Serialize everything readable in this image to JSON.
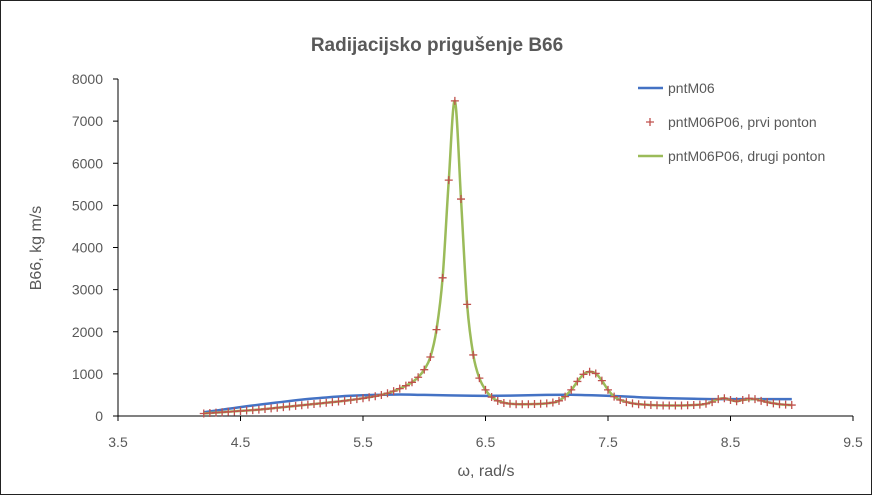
{
  "chart_data": {
    "type": "line",
    "title": "Radijacijsko prigušenje B66",
    "xlabel": "ω, rad/s",
    "ylabel": "B66, kg m/s",
    "xlim": [
      3.5,
      9.5
    ],
    "ylim": [
      0,
      8000
    ],
    "xticks": [
      "3.5",
      "4.5",
      "5.5",
      "6.5",
      "7.5",
      "8.5",
      "9.5"
    ],
    "yticks": [
      "0",
      "1000",
      "2000",
      "3000",
      "4000",
      "5000",
      "6000",
      "7000",
      "8000"
    ],
    "grid": false,
    "legend_position": "top-right",
    "series": [
      {
        "name": "pntM06",
        "style": "line",
        "color": "#4472C4",
        "x": [
          4.2,
          4.4,
          4.6,
          4.8,
          5.0,
          5.2,
          5.4,
          5.6,
          5.8,
          6.0,
          6.2,
          6.4,
          6.6,
          6.8,
          7.0,
          7.2,
          7.4,
          7.6,
          7.8,
          8.0,
          8.2,
          8.4,
          8.6,
          8.8,
          9.0
        ],
        "y": [
          90,
          170,
          250,
          320,
          390,
          440,
          480,
          500,
          510,
          500,
          490,
          480,
          480,
          490,
          500,
          505,
          490,
          470,
          440,
          420,
          410,
          400,
          400,
          400,
          400
        ]
      },
      {
        "name": "pntM06P06, prvi ponton",
        "style": "markers",
        "color": "#C0504D",
        "x": [
          4.2,
          4.25,
          4.3,
          4.35,
          4.4,
          4.45,
          4.5,
          4.55,
          4.6,
          4.65,
          4.7,
          4.75,
          4.8,
          4.85,
          4.9,
          4.95,
          5.0,
          5.05,
          5.1,
          5.15,
          5.2,
          5.25,
          5.3,
          5.35,
          5.4,
          5.45,
          5.5,
          5.55,
          5.6,
          5.65,
          5.7,
          5.75,
          5.8,
          5.85,
          5.9,
          5.95,
          6.0,
          6.05,
          6.1,
          6.15,
          6.2,
          6.25,
          6.3,
          6.35,
          6.4,
          6.45,
          6.5,
          6.55,
          6.6,
          6.65,
          6.7,
          6.75,
          6.8,
          6.85,
          6.9,
          6.95,
          7.0,
          7.05,
          7.1,
          7.15,
          7.2,
          7.25,
          7.3,
          7.35,
          7.4,
          7.45,
          7.5,
          7.55,
          7.6,
          7.65,
          7.7,
          7.75,
          7.8,
          7.85,
          7.9,
          7.95,
          8.0,
          8.05,
          8.1,
          8.15,
          8.2,
          8.25,
          8.3,
          8.35,
          8.4,
          8.45,
          8.5,
          8.55,
          8.6,
          8.65,
          8.7,
          8.75,
          8.8,
          8.85,
          8.9,
          8.95,
          9.0
        ],
        "y": [
          60,
          70,
          80,
          90,
          100,
          110,
          120,
          130,
          140,
          150,
          165,
          180,
          195,
          210,
          225,
          240,
          255,
          270,
          285,
          300,
          315,
          330,
          345,
          360,
          380,
          400,
          420,
          445,
          470,
          500,
          540,
          590,
          650,
          720,
          800,
          920,
          1100,
          1400,
          2050,
          3280,
          5600,
          7480,
          5150,
          2650,
          1450,
          900,
          620,
          450,
          360,
          310,
          290,
          280,
          280,
          280,
          285,
          290,
          300,
          320,
          360,
          460,
          620,
          820,
          990,
          1050,
          1010,
          840,
          620,
          460,
          380,
          330,
          300,
          280,
          270,
          260,
          255,
          250,
          250,
          250,
          250,
          255,
          260,
          270,
          290,
          330,
          400,
          420,
          380,
          350,
          380,
          420,
          400,
          360,
          330,
          300,
          280,
          270,
          260
        ]
      },
      {
        "name": "pntM06P06, drugi ponton",
        "style": "line",
        "color": "#9BBB59",
        "x": [
          4.2,
          4.3,
          4.4,
          4.5,
          4.6,
          4.7,
          4.8,
          4.9,
          5.0,
          5.1,
          5.2,
          5.3,
          5.4,
          5.5,
          5.6,
          5.7,
          5.8,
          5.85,
          5.9,
          5.95,
          6.0,
          6.05,
          6.1,
          6.15,
          6.2,
          6.25,
          6.3,
          6.35,
          6.4,
          6.45,
          6.5,
          6.55,
          6.6,
          6.7,
          6.8,
          6.9,
          7.0,
          7.1,
          7.2,
          7.25,
          7.3,
          7.35,
          7.4,
          7.45,
          7.5,
          7.55,
          7.6,
          7.7,
          7.8,
          7.9,
          8.0,
          8.1,
          8.2,
          8.3,
          8.4,
          8.45,
          8.5,
          8.55,
          8.6,
          8.7,
          8.8,
          8.9,
          9.0
        ],
        "y": [
          60,
          80,
          100,
          120,
          140,
          165,
          195,
          225,
          255,
          285,
          315,
          345,
          380,
          420,
          470,
          540,
          650,
          720,
          800,
          920,
          1100,
          1400,
          2050,
          3280,
          5600,
          7480,
          5150,
          2650,
          1450,
          900,
          620,
          450,
          360,
          290,
          280,
          285,
          300,
          360,
          620,
          820,
          990,
          1050,
          1010,
          840,
          620,
          460,
          380,
          300,
          270,
          255,
          250,
          250,
          260,
          290,
          400,
          420,
          380,
          350,
          380,
          400,
          330,
          280,
          260
        ]
      }
    ]
  }
}
